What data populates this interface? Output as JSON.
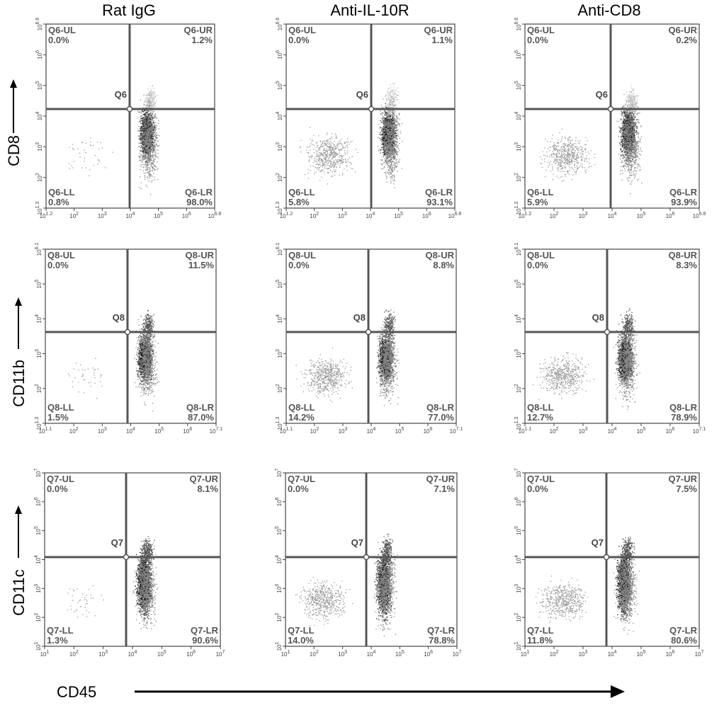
{
  "figure": {
    "column_titles": [
      "Rat IgG",
      "Anti-IL-10R",
      "Anti-CD8"
    ],
    "row_labels": [
      "CD8",
      "CD11b",
      "CD11c"
    ],
    "x_label": "CD45"
  },
  "chart_data": [
    {
      "type": "scatter",
      "group": "Rat IgG",
      "xlabel": "CD45",
      "ylabel": "CD8",
      "gate": "Q6",
      "x_axis_ticks": [
        "10^1.2",
        "10^2",
        "10^3",
        "10^4",
        "10^5",
        "10^6",
        "10^6.8"
      ],
      "y_axis_ticks": [
        "10^1.3",
        "10^2",
        "10^3",
        "10^4",
        "10^5",
        "10^6",
        "10^6.6"
      ],
      "quadrants": {
        "UL": {
          "label": "Q6-UL",
          "value": "0.0%"
        },
        "UR": {
          "label": "Q6-UR",
          "value": "1.2%"
        },
        "LL": {
          "label": "Q6-LL",
          "value": "0.8%"
        },
        "LR": {
          "label": "Q6-LR",
          "value": "98.0%"
        }
      }
    },
    {
      "type": "scatter",
      "group": "Anti-IL-10R",
      "xlabel": "CD45",
      "ylabel": "CD8",
      "gate": "Q6",
      "x_axis_ticks": [
        "10^1.2",
        "10^2",
        "10^3",
        "10^4",
        "10^5",
        "10^6",
        "10^6.8"
      ],
      "y_axis_ticks": [
        "10^1.3",
        "10^2",
        "10^3",
        "10^4",
        "10^5",
        "10^6",
        "10^6.6"
      ],
      "quadrants": {
        "UL": {
          "label": "Q6-UL",
          "value": "0.0%"
        },
        "UR": {
          "label": "Q6-UR",
          "value": "1.1%"
        },
        "LL": {
          "label": "Q6-LL",
          "value": "5.8%"
        },
        "LR": {
          "label": "Q6-LR",
          "value": "93.1%"
        }
      }
    },
    {
      "type": "scatter",
      "group": "Anti-CD8",
      "xlabel": "CD45",
      "ylabel": "CD8",
      "gate": "Q6",
      "x_axis_ticks": [
        "10^1.2",
        "10^2",
        "10^3",
        "10^4",
        "10^5",
        "10^6",
        "10^6.8"
      ],
      "y_axis_ticks": [
        "10^1.3",
        "10^2",
        "10^3",
        "10^4",
        "10^5",
        "10^6",
        "10^6.6"
      ],
      "quadrants": {
        "UL": {
          "label": "Q6-UL",
          "value": "0.0%"
        },
        "UR": {
          "label": "Q6-UR",
          "value": "0.2%"
        },
        "LL": {
          "label": "Q6-LL",
          "value": "5.9%"
        },
        "LR": {
          "label": "Q6-LR",
          "value": "93.9%"
        }
      }
    },
    {
      "type": "scatter",
      "group": "Rat IgG",
      "xlabel": "CD45",
      "ylabel": "CD11b",
      "gate": "Q8",
      "x_axis_ticks": [
        "10^1.1",
        "10^2",
        "10^3",
        "10^4",
        "10^5",
        "10^6",
        "10^7.1"
      ],
      "y_axis_ticks": [
        "10^1.3",
        "10^2",
        "10^3",
        "10^4",
        "10^5",
        "10^6.1"
      ],
      "quadrants": {
        "UL": {
          "label": "Q8-UL",
          "value": "0.0%"
        },
        "UR": {
          "label": "Q8-UR",
          "value": "11.5%"
        },
        "LL": {
          "label": "Q8-LL",
          "value": "1.5%"
        },
        "LR": {
          "label": "Q8-LR",
          "value": "87.0%"
        }
      }
    },
    {
      "type": "scatter",
      "group": "Anti-IL-10R",
      "xlabel": "CD45",
      "ylabel": "CD11b",
      "gate": "Q8",
      "x_axis_ticks": [
        "10^1.1",
        "10^2",
        "10^3",
        "10^4",
        "10^5",
        "10^6",
        "10^7.1"
      ],
      "y_axis_ticks": [
        "10^1.3",
        "10^2",
        "10^3",
        "10^4",
        "10^5",
        "10^6.1"
      ],
      "quadrants": {
        "UL": {
          "label": "Q8-UL",
          "value": "0.0%"
        },
        "UR": {
          "label": "Q8-UR",
          "value": "8.8%"
        },
        "LL": {
          "label": "Q8-LL",
          "value": "14.2%"
        },
        "LR": {
          "label": "Q8-LR",
          "value": "77.0%"
        }
      }
    },
    {
      "type": "scatter",
      "group": "Anti-CD8",
      "xlabel": "CD45",
      "ylabel": "CD11b",
      "gate": "Q8",
      "x_axis_ticks": [
        "10^1.1",
        "10^2",
        "10^3",
        "10^4",
        "10^5",
        "10^6",
        "10^7.1"
      ],
      "y_axis_ticks": [
        "10^1.3",
        "10^2",
        "10^3",
        "10^4",
        "10^5",
        "10^6.1"
      ],
      "quadrants": {
        "UL": {
          "label": "Q8-UL",
          "value": "0.0%"
        },
        "UR": {
          "label": "Q8-UR",
          "value": "8.3%"
        },
        "LL": {
          "label": "Q8-LL",
          "value": "12.7%"
        },
        "LR": {
          "label": "Q8-LR",
          "value": "78.9%"
        }
      }
    },
    {
      "type": "scatter",
      "group": "Rat IgG",
      "xlabel": "CD45",
      "ylabel": "CD11c",
      "gate": "Q7",
      "x_axis_ticks": [
        "10^1",
        "10^2",
        "10^3",
        "10^4",
        "10^5",
        "10^6",
        "10^7"
      ],
      "y_axis_ticks": [
        "10^1",
        "10^2",
        "10^3",
        "10^4",
        "10^5",
        "10^6",
        "10^7"
      ],
      "quadrants": {
        "UL": {
          "label": "Q7-UL",
          "value": "0.0%"
        },
        "UR": {
          "label": "Q7-UR",
          "value": "8.1%"
        },
        "LL": {
          "label": "Q7-LL",
          "value": "1.3%"
        },
        "LR": {
          "label": "Q7-LR",
          "value": "90.6%"
        }
      }
    },
    {
      "type": "scatter",
      "group": "Anti-IL-10R",
      "xlabel": "CD45",
      "ylabel": "CD11c",
      "gate": "Q7",
      "x_axis_ticks": [
        "10^1",
        "10^2",
        "10^3",
        "10^4",
        "10^5",
        "10^6",
        "10^7"
      ],
      "y_axis_ticks": [
        "10^1",
        "10^2",
        "10^3",
        "10^4",
        "10^5",
        "10^6",
        "10^7"
      ],
      "quadrants": {
        "UL": {
          "label": "Q7-UL",
          "value": "0.0%"
        },
        "UR": {
          "label": "Q7-UR",
          "value": "7.1%"
        },
        "LL": {
          "label": "Q7-LL",
          "value": "14.0%"
        },
        "LR": {
          "label": "Q7-LR",
          "value": "78.8%"
        }
      }
    },
    {
      "type": "scatter",
      "group": "Anti-CD8",
      "xlabel": "CD45",
      "ylabel": "CD11c",
      "gate": "Q7",
      "x_axis_ticks": [
        "10^1",
        "10^2",
        "10^3",
        "10^4",
        "10^5",
        "10^6",
        "10^7"
      ],
      "y_axis_ticks": [
        "10^1",
        "10^2",
        "10^3",
        "10^4",
        "10^5",
        "10^6",
        "10^7"
      ],
      "quadrants": {
        "UL": {
          "label": "Q7-UL",
          "value": "0.0%"
        },
        "UR": {
          "label": "Q7-UR",
          "value": "7.5%"
        },
        "LL": {
          "label": "Q7-LL",
          "value": "11.8%"
        },
        "LR": {
          "label": "Q7-LR",
          "value": "80.6%"
        }
      }
    }
  ]
}
